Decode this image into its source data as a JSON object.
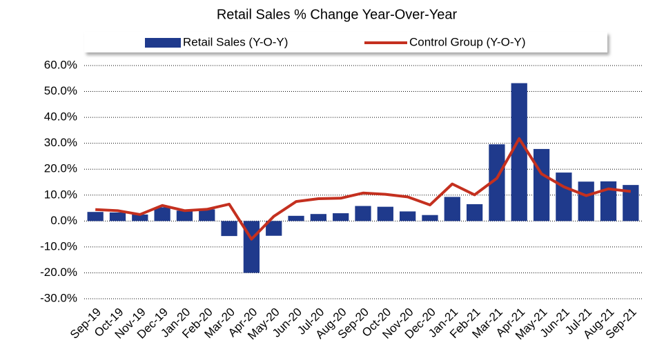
{
  "chart_data": {
    "type": "bar-line",
    "title": "Retail Sales % Change Year-Over-Year",
    "categories": [
      "Sep-19",
      "Oct-19",
      "Nov-19",
      "Dec-19",
      "Jan-20",
      "Feb-20",
      "Mar-20",
      "Apr-20",
      "May-20",
      "Jun-20",
      "Jul-20",
      "Aug-20",
      "Sep-20",
      "Oct-20",
      "Nov-20",
      "Dec-20",
      "Jan-21",
      "Feb-21",
      "Mar-21",
      "Apr-21",
      "May-21",
      "Jun-21",
      "Jul-21",
      "Aug-21",
      "Sep-21"
    ],
    "series": [
      {
        "name": "Retail Sales (Y-O-Y)",
        "type": "bar",
        "color": "#1f3a8c",
        "values": [
          3.5,
          3.3,
          2.5,
          5.3,
          4.0,
          4.5,
          -5.8,
          -20.0,
          -5.7,
          2.0,
          2.7,
          3.0,
          5.8,
          5.5,
          3.7,
          2.3,
          9.3,
          6.5,
          29.6,
          53.2,
          27.8,
          18.7,
          15.2,
          15.3,
          13.9
        ]
      },
      {
        "name": "Control Group (Y-O-Y)",
        "type": "line",
        "color": "#c4301f",
        "values": [
          4.4,
          4.0,
          2.5,
          6.0,
          4.0,
          4.5,
          6.5,
          -7.0,
          1.8,
          7.5,
          8.6,
          8.8,
          10.8,
          10.3,
          9.3,
          6.2,
          14.3,
          10.1,
          16.5,
          31.8,
          18.2,
          13.2,
          9.8,
          12.4,
          11.4
        ]
      }
    ],
    "ylim": [
      -30,
      60
    ],
    "yticks": [
      {
        "value": -30,
        "label": "-30.0%"
      },
      {
        "value": -20,
        "label": "-20.0%"
      },
      {
        "value": -10,
        "label": "-10.0%"
      },
      {
        "value": 0,
        "label": "0.0%"
      },
      {
        "value": 10,
        "label": "10.0%"
      },
      {
        "value": 20,
        "label": "20.0%"
      },
      {
        "value": 30,
        "label": "30.0%"
      },
      {
        "value": 40,
        "label": "40.0%"
      },
      {
        "value": 50,
        "label": "50.0%"
      },
      {
        "value": 60,
        "label": "60.0%"
      }
    ],
    "grid": true,
    "legend": "top"
  }
}
